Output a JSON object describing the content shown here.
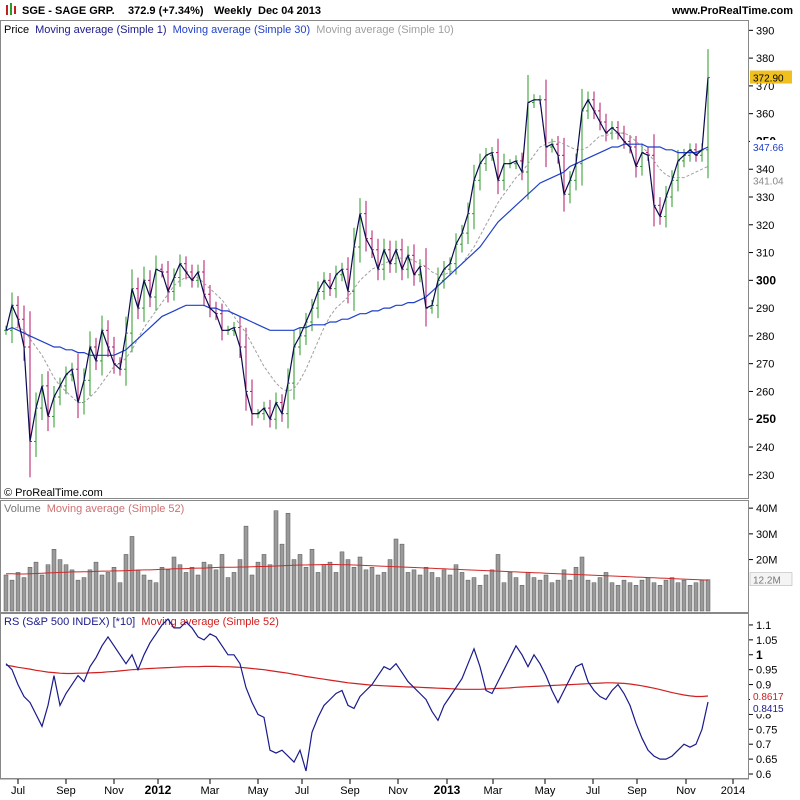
{
  "header": {
    "symbol_text": "SGE - SAGE GRP.",
    "price_text": "372.9 (+7.34%)",
    "period_text": "Weekly",
    "date_text": "Dec 04 2013",
    "site_text": "www.ProRealTime.com",
    "copyright_text": "© ProRealTime.com"
  },
  "colors": {
    "up": "#2a9a2a",
    "down": "#b0146a",
    "price_line": "#0a0a50",
    "ma30": "#2040c8",
    "ma10": "#a0a0a0",
    "volume_bar": "#9a9a9a",
    "volume_ma": "#d02828",
    "rs_line": "#1a1a8a",
    "rs_ma": "#d02020",
    "last_price_bg": "#f0c020"
  },
  "chart_data": [
    {
      "type": "bar",
      "panel": "price",
      "legend": {
        "prefix": "Price",
        "ma1": "Moving average (Simple 1)",
        "ma30": "Moving average (Simple 30)",
        "ma10": "Moving average (Simple 10)"
      },
      "x_ticks": [
        "Jul",
        "Sep",
        "Nov",
        "2012",
        "Mar",
        "May",
        "Jul",
        "Sep",
        "Nov",
        "2013",
        "Mar",
        "May",
        "Jul",
        "Sep",
        "Nov",
        "2014"
      ],
      "x_ticks_bold": [
        "2012",
        "2013"
      ],
      "y_ticks": [
        230,
        240,
        250,
        260,
        270,
        280,
        290,
        300,
        310,
        320,
        330,
        340,
        350,
        360,
        370,
        380,
        390
      ],
      "y_ticks_bold": [
        250,
        300,
        350
      ],
      "ylim": [
        222,
        393
      ],
      "close": [
        282,
        291,
        286,
        276,
        242,
        254,
        262,
        251,
        258,
        262,
        266,
        268,
        256,
        264,
        276,
        271,
        282,
        276,
        270,
        268,
        281,
        297,
        290,
        300,
        294,
        304,
        303,
        296,
        301,
        306,
        303,
        300,
        303,
        295,
        290,
        288,
        282,
        282,
        283,
        276,
        260,
        252,
        252,
        254,
        250,
        256,
        252,
        263,
        276,
        280,
        285,
        290,
        296,
        300,
        297,
        302,
        304,
        296,
        312,
        324,
        315,
        311,
        304,
        311,
        306,
        311,
        304,
        309,
        302,
        305,
        290,
        291,
        300,
        304,
        306,
        313,
        317,
        324,
        336,
        342,
        345,
        346,
        336,
        342,
        342,
        343,
        339,
        364,
        365,
        365,
        348,
        349,
        345,
        331,
        336,
        342,
        361,
        365,
        361,
        357,
        353,
        355,
        353,
        350,
        348,
        341,
        346,
        345,
        327,
        323,
        330,
        336,
        343,
        345,
        347,
        345,
        347,
        373
      ],
      "ma30": [
        282,
        283,
        282,
        281,
        280,
        279,
        278,
        277,
        276,
        276,
        275,
        275,
        274,
        274,
        273,
        273,
        273,
        273,
        273,
        274,
        275,
        277,
        279,
        281,
        283,
        285,
        287,
        288,
        289,
        290,
        291,
        291,
        291,
        291,
        290,
        290,
        289,
        289,
        288,
        287,
        286,
        285,
        284,
        283,
        282,
        282,
        282,
        282,
        282,
        283,
        283,
        284,
        284,
        284,
        285,
        285,
        286,
        286,
        287,
        288,
        288,
        289,
        289,
        290,
        290,
        291,
        291,
        292,
        292,
        293,
        294,
        296,
        298,
        300,
        302,
        304,
        306,
        308,
        310,
        312,
        315,
        318,
        321,
        323,
        325,
        327,
        329,
        331,
        333,
        335,
        336,
        337,
        338,
        339,
        341,
        342,
        343,
        344,
        345,
        346,
        347,
        348,
        348,
        349,
        349,
        349,
        349,
        348,
        348,
        348,
        347,
        347,
        346,
        346,
        346,
        346,
        347,
        348
      ],
      "ma10": [
        282,
        283,
        283,
        282,
        279,
        276,
        273,
        269,
        265,
        262,
        260,
        258,
        256,
        256,
        258,
        260,
        263,
        266,
        269,
        270,
        272,
        275,
        279,
        283,
        286,
        289,
        292,
        295,
        298,
        300,
        301,
        301,
        301,
        299,
        297,
        295,
        293,
        290,
        287,
        284,
        281,
        277,
        273,
        269,
        266,
        263,
        261,
        260,
        261,
        264,
        268,
        273,
        278,
        283,
        287,
        290,
        292,
        294,
        297,
        300,
        302,
        304,
        305,
        306,
        307,
        308,
        308,
        308,
        307,
        306,
        305,
        303,
        302,
        302,
        303,
        304,
        306,
        309,
        312,
        316,
        320,
        324,
        328,
        331,
        334,
        337,
        339,
        342,
        345,
        348,
        349,
        350,
        350,
        349,
        348,
        347,
        347,
        348,
        350,
        352,
        352,
        353,
        353,
        353,
        352,
        350,
        348,
        346,
        343,
        340,
        338,
        337,
        337,
        337,
        338,
        339,
        340,
        341
      ],
      "last_price_label": "372.90",
      "ma30_label": "347.66",
      "ma10_label": "341.04"
    },
    {
      "type": "bar",
      "panel": "volume",
      "legend": {
        "prefix": "Volume",
        "ma": "Moving average (Simple 52)"
      },
      "y_ticks": [
        "40M",
        "30M",
        "20M"
      ],
      "ylim": [
        0,
        42
      ],
      "values": [
        14,
        12,
        15,
        13,
        17,
        19,
        14,
        18,
        24,
        20,
        18,
        16,
        12,
        13,
        16,
        19,
        14,
        15,
        17,
        11,
        22,
        29,
        16,
        14,
        12,
        11,
        17,
        16,
        21,
        18,
        15,
        17,
        14,
        19,
        18,
        16,
        22,
        13,
        15,
        20,
        33,
        14,
        19,
        22,
        18,
        39,
        26,
        38,
        20,
        22,
        17,
        24,
        15,
        18,
        19,
        15,
        23,
        20,
        17,
        21,
        16,
        17,
        14,
        15,
        20,
        28,
        26,
        15,
        16,
        14,
        17,
        15,
        13,
        16,
        14,
        18,
        15,
        12,
        13,
        10,
        14,
        16,
        22,
        11,
        15,
        13,
        10,
        15,
        13,
        12,
        14,
        11,
        12,
        16,
        12,
        17,
        21,
        12,
        11,
        13,
        15,
        11,
        10,
        12,
        11,
        10,
        12,
        13,
        11,
        10,
        12,
        13,
        11,
        12,
        10,
        11,
        12,
        12.2
      ],
      "ma": [
        14.5,
        14.5,
        14.4,
        14.4,
        14.5,
        14.6,
        14.7,
        14.8,
        14.9,
        15.0,
        15.1,
        15.2,
        15.2,
        15.3,
        15.3,
        15.4,
        15.5,
        15.5,
        15.6,
        15.6,
        15.7,
        15.8,
        15.9,
        16.0,
        16.0,
        16.1,
        16.2,
        16.3,
        16.4,
        16.4,
        16.5,
        16.6,
        16.7,
        16.7,
        16.8,
        16.9,
        17.0,
        17.0,
        17.0,
        17.1,
        17.1,
        17.2,
        17.3,
        17.3,
        17.4,
        17.5,
        17.6,
        17.7,
        17.8,
        17.9,
        17.9,
        18.0,
        18.0,
        18.1,
        18.1,
        18.1,
        18.0,
        18.0,
        17.9,
        17.8,
        17.7,
        17.6,
        17.5,
        17.4,
        17.3,
        17.2,
        17.1,
        17.0,
        16.9,
        16.8,
        16.7,
        16.6,
        16.5,
        16.4,
        16.3,
        16.2,
        16.1,
        16.0,
        15.9,
        15.8,
        15.7,
        15.6,
        15.5,
        15.4,
        15.3,
        15.2,
        15.1,
        15.0,
        14.9,
        14.8,
        14.7,
        14.6,
        14.5,
        14.4,
        14.3,
        14.2,
        14.1,
        14.0,
        13.9,
        13.8,
        13.7,
        13.6,
        13.5,
        13.4,
        13.3,
        13.2,
        13.1,
        13.0,
        12.9,
        12.8,
        12.7,
        12.6,
        12.5,
        12.4,
        12.3,
        12.2,
        12.1,
        12.0
      ],
      "last_label": "12.2M"
    },
    {
      "type": "line",
      "panel": "rs",
      "legend": {
        "prefix": "RS (S&P 500 INDEX) [*10]",
        "ma": "Moving average (Simple 52)"
      },
      "y_ticks": [
        0.6,
        0.65,
        0.7,
        0.75,
        0.8,
        0.85,
        0.9,
        0.95,
        1,
        1.05,
        1.1
      ],
      "y_ticks_bold": [
        1
      ],
      "ylim": [
        0.59,
        1.13
      ],
      "series": [
        {
          "values": [
            0.97,
            0.95,
            0.9,
            0.86,
            0.84,
            0.8,
            0.76,
            0.83,
            0.93,
            0.83,
            0.87,
            0.9,
            0.93,
            0.91,
            0.96,
            0.99,
            1.03,
            1.06,
            1.03,
            1.0,
            0.97,
            1.0,
            0.95,
            1.0,
            1.04,
            1.07,
            1.1,
            1.12,
            1.09,
            1.09,
            1.11,
            1.09,
            1.06,
            1.05,
            1.07,
            1.06,
            1.03,
            1.0,
            1.0,
            0.97,
            0.89,
            0.84,
            0.8,
            0.79,
            0.68,
            0.67,
            0.68,
            0.66,
            0.64,
            0.68,
            0.61,
            0.74,
            0.79,
            0.83,
            0.85,
            0.87,
            0.88,
            0.83,
            0.82,
            0.86,
            0.88,
            0.9,
            0.93,
            0.96,
            0.95,
            0.97,
            0.94,
            0.91,
            0.89,
            0.87,
            0.85,
            0.81,
            0.78,
            0.83,
            0.86,
            0.89,
            0.92,
            0.97,
            1.02,
            0.96,
            0.88,
            0.87,
            0.91,
            0.95,
            0.99,
            1.03,
            1.0,
            0.96,
            1.0,
            0.97,
            0.93,
            0.88,
            0.84,
            0.88,
            0.92,
            0.96,
            0.97,
            0.91,
            0.88,
            0.86,
            0.85,
            0.88,
            0.9,
            0.87,
            0.83,
            0.77,
            0.72,
            0.68,
            0.66,
            0.65,
            0.65,
            0.66,
            0.68,
            0.7,
            0.69,
            0.7,
            0.75,
            0.8415
          ]
        },
        {
          "values": [
            0.965,
            0.962,
            0.958,
            0.955,
            0.952,
            0.948,
            0.945,
            0.942,
            0.94,
            0.938,
            0.937,
            0.937,
            0.938,
            0.938,
            0.939,
            0.94,
            0.941,
            0.943,
            0.944,
            0.946,
            0.948,
            0.95,
            0.951,
            0.953,
            0.954,
            0.955,
            0.956,
            0.957,
            0.958,
            0.959,
            0.96,
            0.96,
            0.96,
            0.961,
            0.961,
            0.961,
            0.96,
            0.96,
            0.959,
            0.958,
            0.956,
            0.954,
            0.952,
            0.95,
            0.947,
            0.944,
            0.941,
            0.938,
            0.934,
            0.931,
            0.927,
            0.924,
            0.921,
            0.918,
            0.915,
            0.912,
            0.909,
            0.906,
            0.904,
            0.902,
            0.9,
            0.898,
            0.897,
            0.896,
            0.895,
            0.894,
            0.893,
            0.892,
            0.892,
            0.891,
            0.89,
            0.889,
            0.888,
            0.887,
            0.886,
            0.885,
            0.884,
            0.884,
            0.884,
            0.884,
            0.885,
            0.886,
            0.887,
            0.888,
            0.889,
            0.891,
            0.892,
            0.893,
            0.894,
            0.895,
            0.896,
            0.897,
            0.898,
            0.899,
            0.9,
            0.901,
            0.902,
            0.903,
            0.904,
            0.905,
            0.906,
            0.906,
            0.905,
            0.904,
            0.902,
            0.899,
            0.896,
            0.892,
            0.888,
            0.883,
            0.878,
            0.873,
            0.869,
            0.865,
            0.862,
            0.86,
            0.86,
            0.8617
          ]
        }
      ],
      "rs_label": "0.8415",
      "ma_label": "0.8617"
    }
  ]
}
